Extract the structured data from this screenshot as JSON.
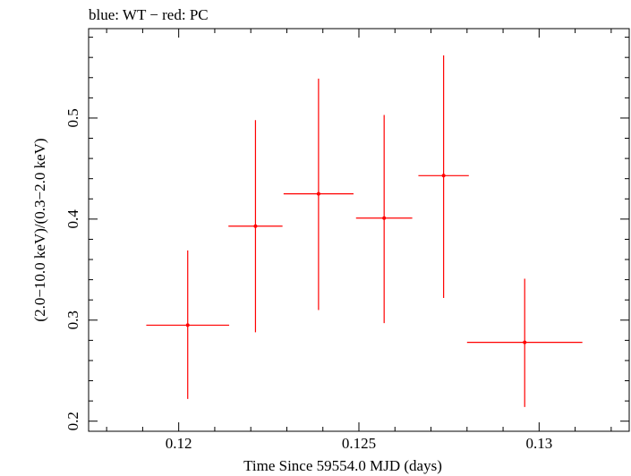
{
  "chart_data": {
    "type": "scatter",
    "title": "blue: WT − red: PC",
    "xlabel": "Time Since 59554.0 MJD (days)",
    "ylabel": "(2.0−10.0 keV)/(0.3−2.0 keV)",
    "xlim": [
      0.1175,
      0.1325
    ],
    "ylim": [
      0.19,
      0.5885
    ],
    "x_ticks": [
      0.12,
      0.125,
      0.13
    ],
    "x_tick_labels": [
      "0.12",
      "0.125",
      "0.13"
    ],
    "y_ticks": [
      0.2,
      0.3,
      0.4,
      0.5
    ],
    "y_tick_labels": [
      "0.2",
      "0.3",
      "0.4",
      "0.5"
    ],
    "grid": false,
    "series": [
      {
        "color": "#ff0000",
        "points": [
          {
            "x": 0.12025,
            "xerr": 0.00115,
            "y": 0.295,
            "ylo": 0.222,
            "yhi": 0.369
          },
          {
            "x": 0.12213,
            "xerr": 0.00075,
            "y": 0.393,
            "ylo": 0.288,
            "yhi": 0.498
          },
          {
            "x": 0.12388,
            "xerr": 0.00097,
            "y": 0.425,
            "ylo": 0.31,
            "yhi": 0.539
          },
          {
            "x": 0.1257,
            "xerr": 0.00078,
            "y": 0.401,
            "ylo": 0.297,
            "yhi": 0.503
          },
          {
            "x": 0.12735,
            "xerr": 0.0007,
            "y": 0.443,
            "ylo": 0.322,
            "yhi": 0.562
          },
          {
            "x": 0.1296,
            "xerr": 0.0016,
            "y": 0.278,
            "ylo": 0.214,
            "yhi": 0.341
          }
        ]
      }
    ]
  }
}
